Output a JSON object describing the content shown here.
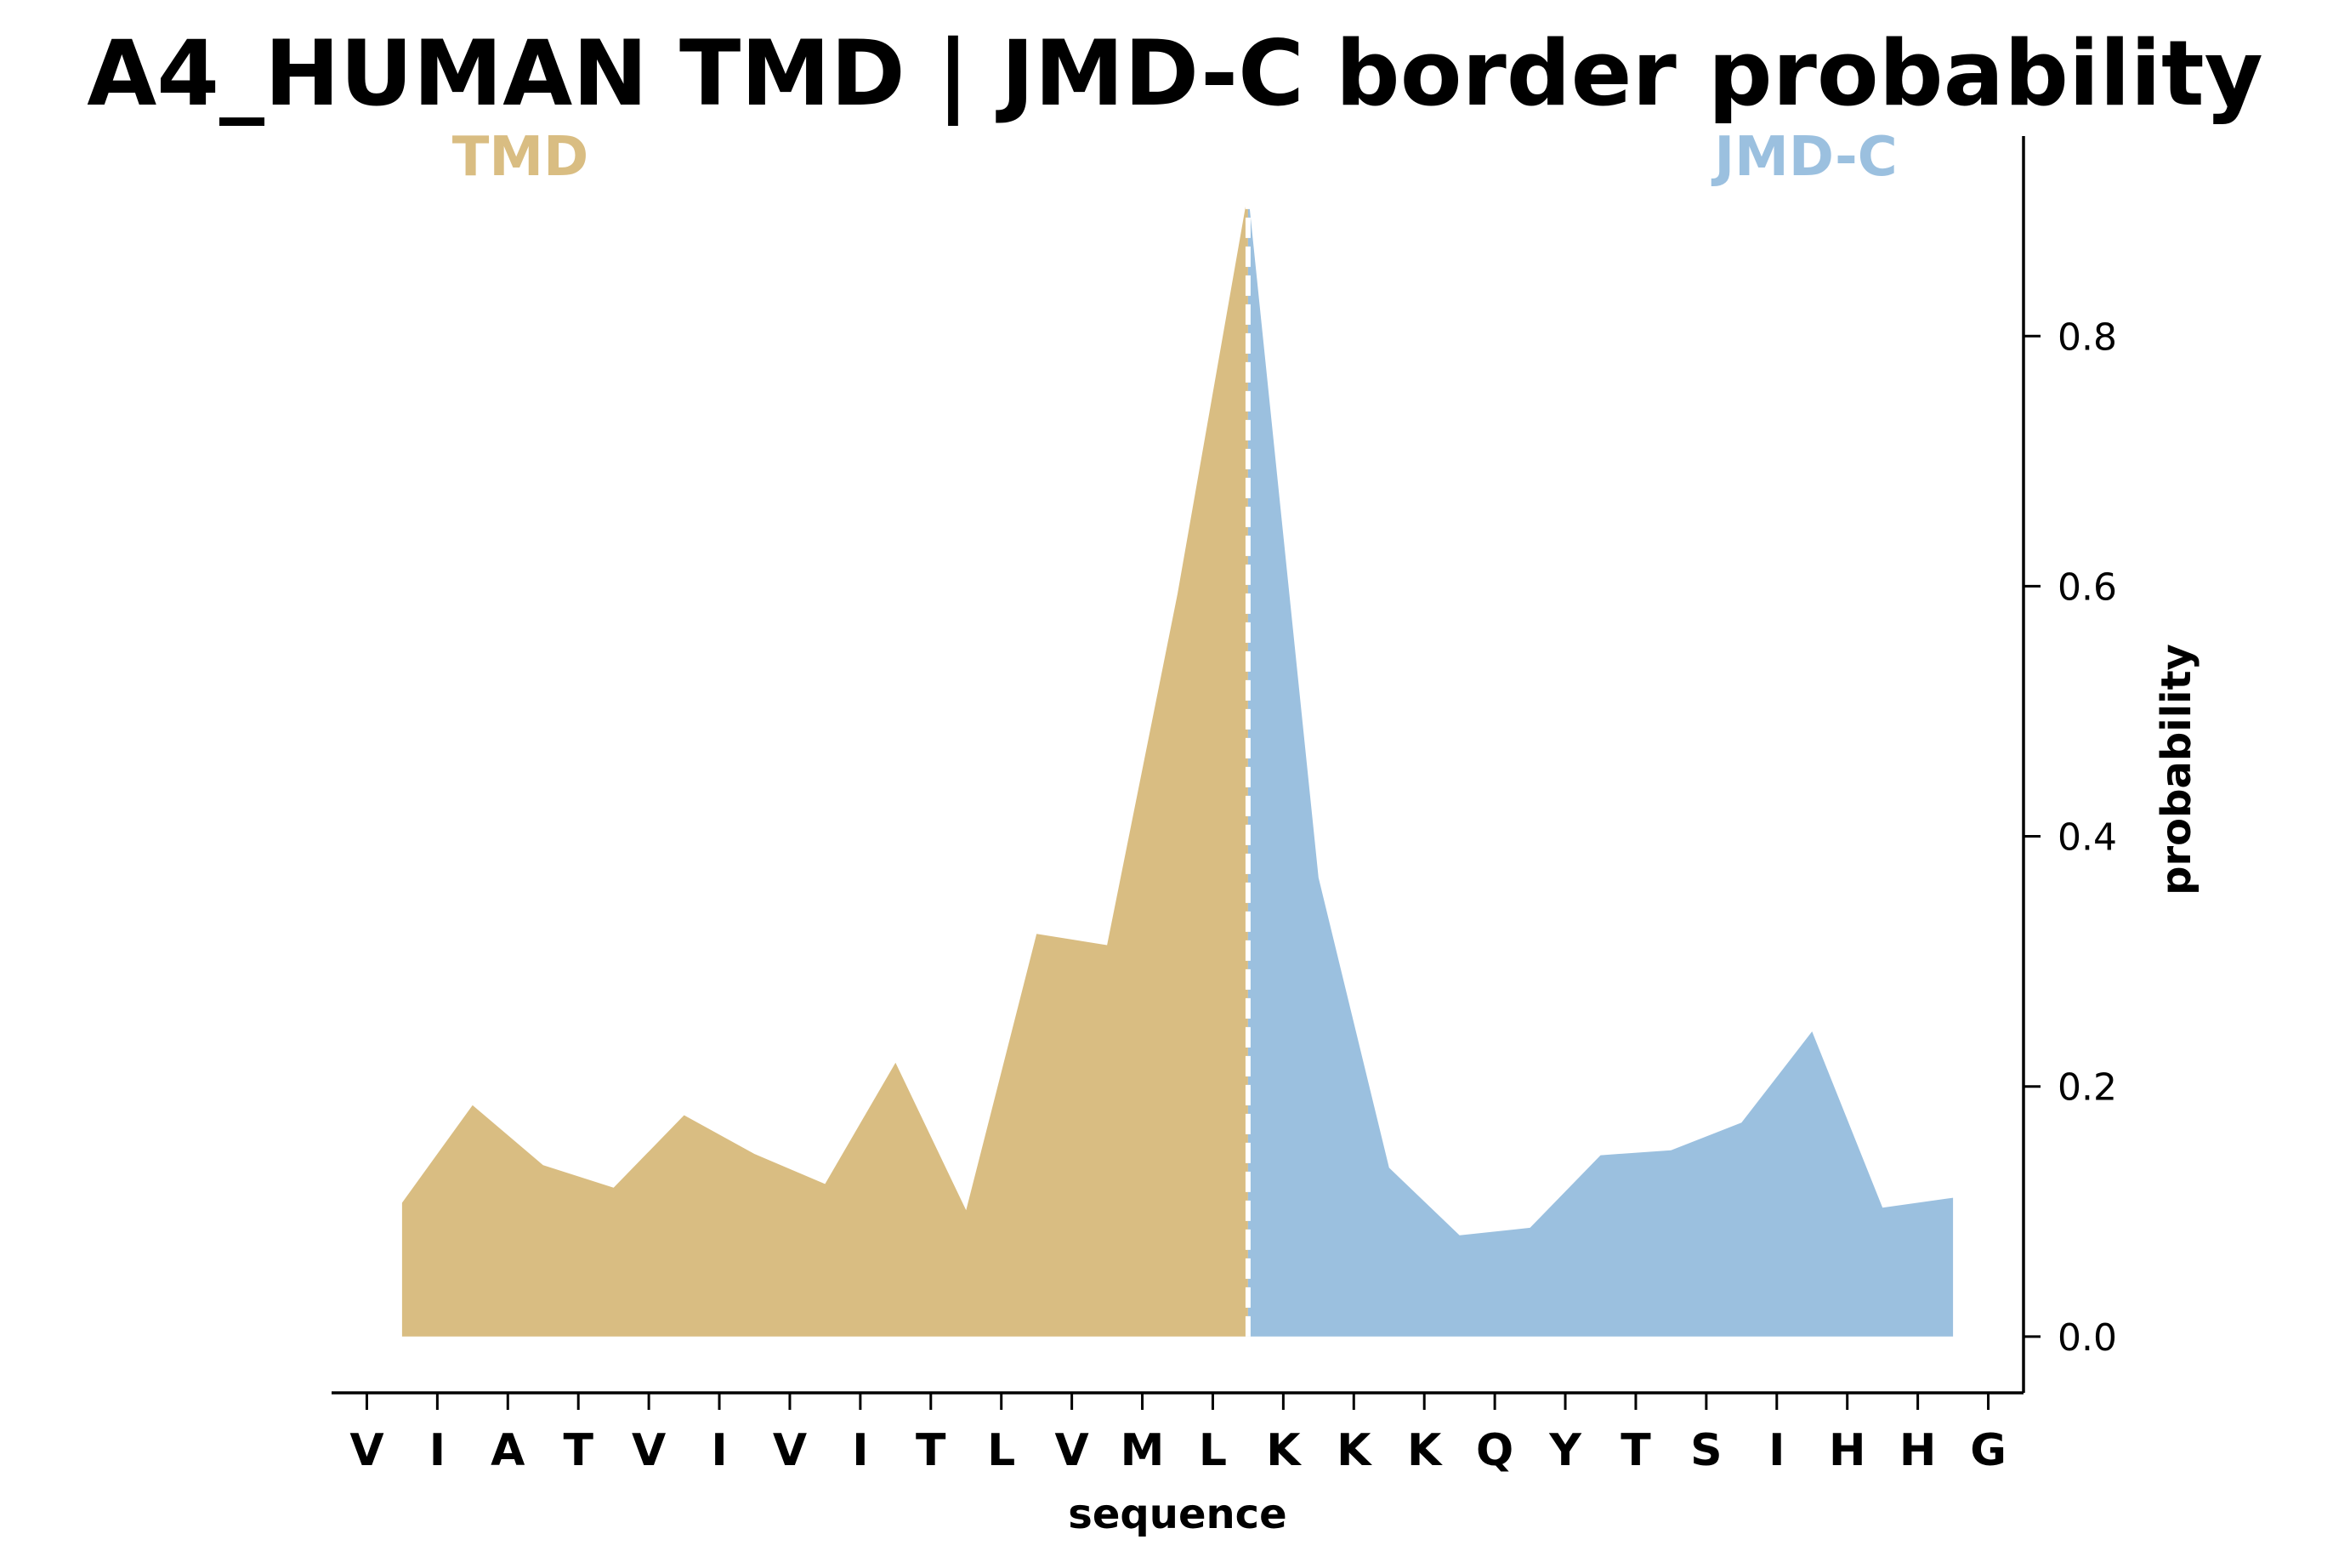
{
  "chart_data": {
    "type": "area",
    "title": "A4_HUMAN TMD | JMD-C border probability",
    "xlabel": "sequence",
    "ylabel": "probability",
    "sequence": [
      "V",
      "I",
      "A",
      "T",
      "V",
      "I",
      "V",
      "I",
      "T",
      "L",
      "V",
      "M",
      "L",
      "K",
      "K",
      "K",
      "Q",
      "Y",
      "T",
      "S",
      "I",
      "H",
      "H",
      "G"
    ],
    "x": [
      0.5,
      1.5,
      2.5,
      3.5,
      4.5,
      5.5,
      6.5,
      7.5,
      8.5,
      9.5,
      10.5,
      11.5,
      12.5,
      13.5,
      14.5,
      15.5,
      16.5,
      17.5,
      18.5,
      19.5,
      20.5,
      21.5,
      22.5
    ],
    "values": [
      0.107,
      0.185,
      0.137,
      0.119,
      0.177,
      0.146,
      0.122,
      0.219,
      0.101,
      0.322,
      0.313,
      0.594,
      0.915,
      0.367,
      0.135,
      0.081,
      0.087,
      0.145,
      0.149,
      0.171,
      0.244,
      0.103,
      0.111
    ],
    "border_x": 12.5,
    "xlim": [
      -0.5,
      23.5
    ],
    "ylim": [
      -0.045,
      0.96
    ],
    "yticks": [
      0.0,
      0.2,
      0.4,
      0.6,
      0.8
    ],
    "ytick_labels": [
      "0.0",
      "0.2",
      "0.4",
      "0.6",
      "0.8"
    ],
    "y_axis_side": "right",
    "grid": false,
    "regions": [
      {
        "label": "TMD",
        "color": "#d9bd82",
        "from_x": 0.5,
        "to_x": 12.5
      },
      {
        "label": "JMD-C",
        "color": "#9bc0df",
        "from_x": 12.5,
        "to_x": 22.5
      }
    ],
    "border_line_color": "#ffffff"
  }
}
